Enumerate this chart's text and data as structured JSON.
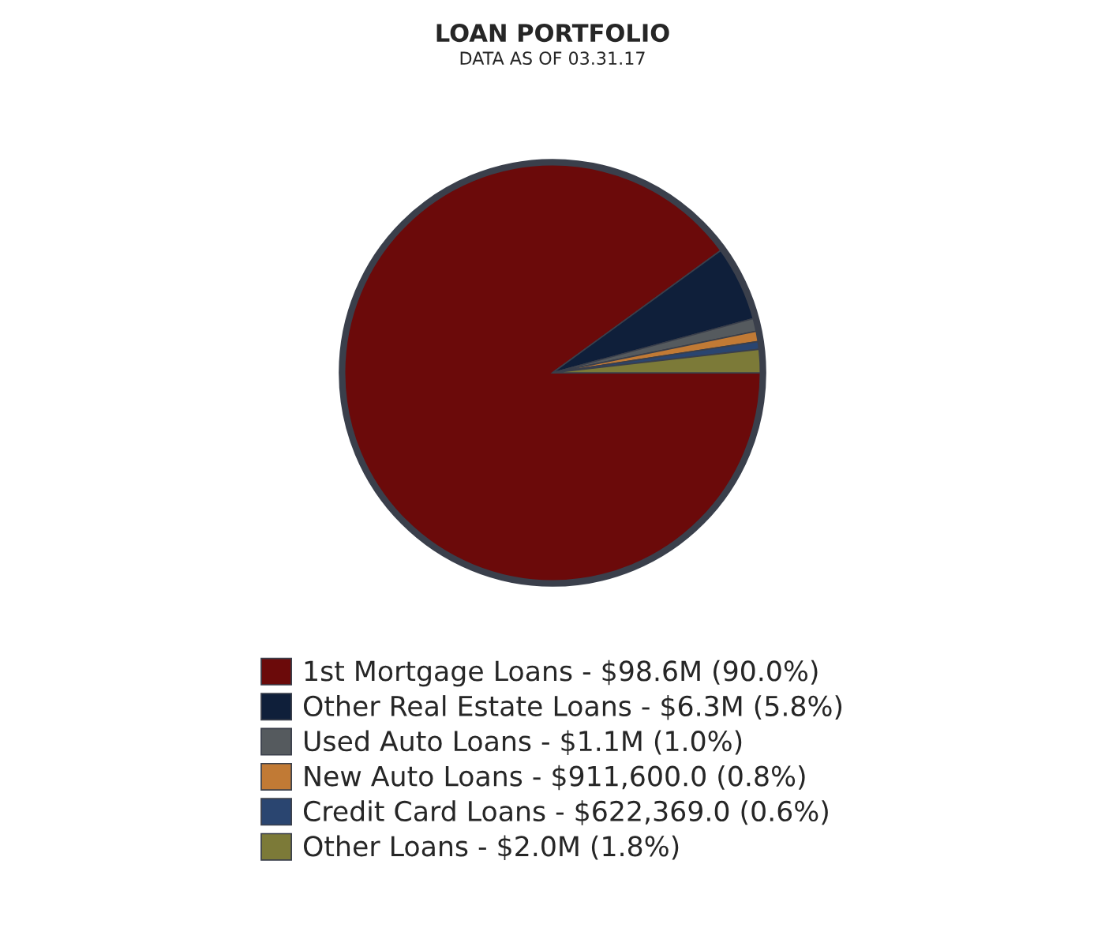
{
  "chart_data": {
    "type": "pie",
    "title": "LOAN PORTFOLIO",
    "subtitle": "DATA AS OF 03.31.17",
    "categories": [
      "1st Mortgage Loans - $98.6M (90.0%)",
      "Other Real Estate Loans - $6.3M (5.8%)",
      "Used Auto Loans - $1.1M (1.0%)",
      "New Auto Loans - $911,600.0 (0.8%)",
      "Credit Card Loans - $622,369.0 (0.6%)",
      "Other Loans - $2.0M (1.8%)"
    ],
    "values": [
      90.0,
      5.8,
      1.0,
      0.8,
      0.6,
      1.8
    ],
    "colors": [
      "#6b0a0a",
      "#0f1f3a",
      "#555a5e",
      "#c17a35",
      "#2a4570",
      "#7c7a38"
    ],
    "legend": "bottom"
  }
}
